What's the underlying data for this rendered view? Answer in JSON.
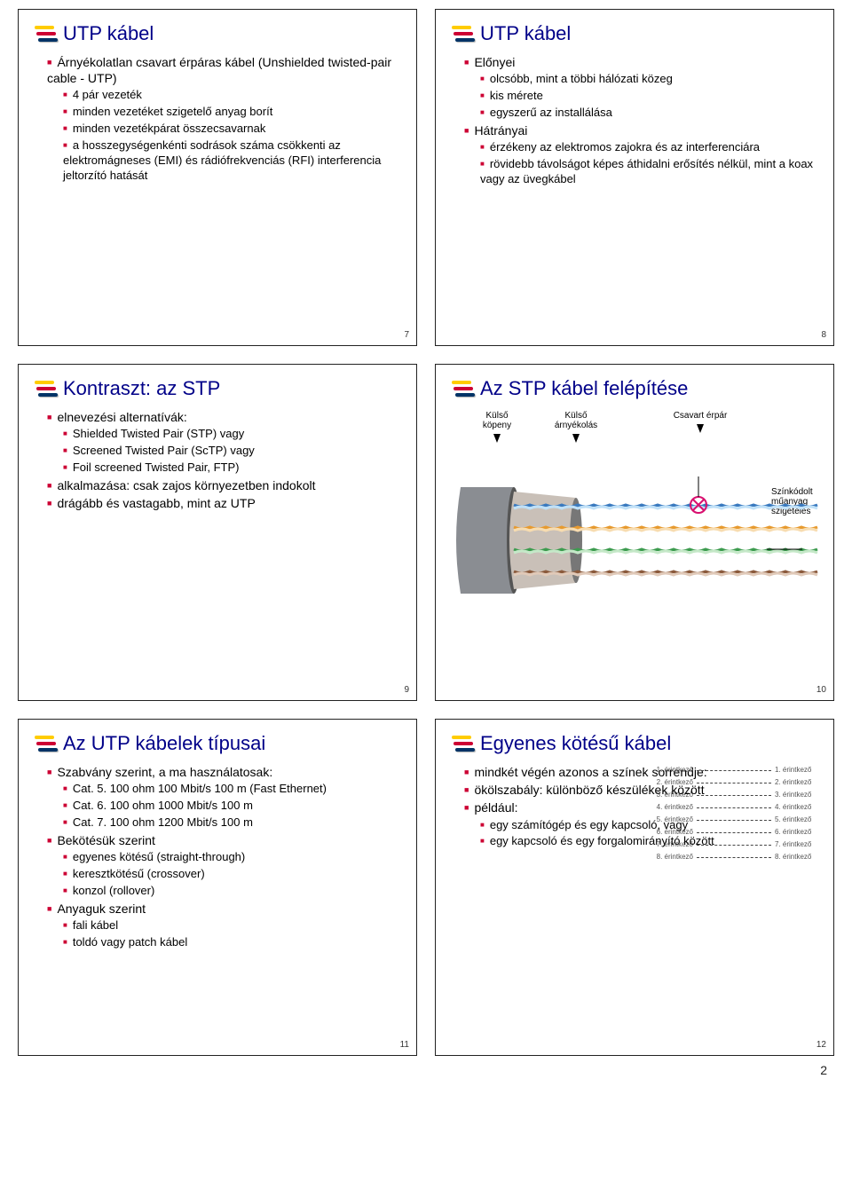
{
  "page_number": "2",
  "colors": {
    "title": "#000088",
    "bullet": "#cc0033",
    "icon_bar1": "#ffcc00",
    "icon_bar2": "#cc0033",
    "icon_bar3": "#003366",
    "border": "#222222",
    "text": "#000000",
    "bg": "#ffffff"
  },
  "stp_diagram": {
    "labels": {
      "outer_jacket": "Külső\nköpeny",
      "outer_shield": "Külső\nárnyékolás",
      "twisted_pair": "Csavart érpár",
      "color_insul": "Színkódolt\nműanyag\nszigetelés"
    },
    "pair_colors": [
      [
        "#3a7abf",
        "#bfe0f7"
      ],
      [
        "#e79a2f",
        "#f7dcb0"
      ],
      [
        "#3d9b4f",
        "#c5e8c8"
      ],
      [
        "#8b5a3c",
        "#e0c9b8"
      ]
    ],
    "marker_color": "#d80f6f",
    "jacket_color": "#8a8d92",
    "shield_color": "#c9c0b8"
  },
  "pinout": {
    "left": [
      "1. érintkező",
      "2. érintkező",
      "3. érintkező",
      "4. érintkező",
      "5. érintkező",
      "6. érintkező",
      "7. érintkező",
      "8. érintkező"
    ],
    "right": [
      "1. érintkező",
      "2. érintkező",
      "3. érintkező",
      "4. érintkező",
      "5. érintkező",
      "6. érintkező",
      "7. érintkező",
      "8. érintkező"
    ]
  },
  "slides": [
    {
      "num": "7",
      "title": "UTP kábel",
      "bullets": [
        {
          "t": "Árnyékolatlan csavart érpáras kábel (Unshielded twisted-pair cable - UTP)",
          "c": [
            {
              "t": "4 pár vezeték"
            },
            {
              "t": "minden vezetéket szigetelő anyag borít"
            },
            {
              "t": "minden vezetékpárat összecsavarnak"
            },
            {
              "t": "a hosszegységenkénti sodrások száma csökkenti az elektromágneses (EMI) és rádiófrekvenciás (RFI) interferencia jeltorzító hatását"
            }
          ]
        }
      ]
    },
    {
      "num": "8",
      "title": "UTP kábel",
      "bullets": [
        {
          "t": "Előnyei",
          "c": [
            {
              "t": "olcsóbb, mint a többi hálózati közeg"
            },
            {
              "t": "kis mérete"
            },
            {
              "t": "egyszerű az installálása"
            }
          ]
        },
        {
          "t": "Hátrányai",
          "c": [
            {
              "t": "érzékeny az elektromos zajokra és az interferenciára"
            },
            {
              "t": "rövidebb távolságot képes áthidalni erősítés nélkül, mint a koax vagy az üvegkábel"
            }
          ]
        }
      ]
    },
    {
      "num": "9",
      "title": "Kontraszt: az STP",
      "bullets": [
        {
          "t": "elnevezési alternatívák:",
          "c": [
            {
              "t": "Shielded Twisted Pair (STP) vagy"
            },
            {
              "t": "Screened Twisted Pair (ScTP) vagy"
            },
            {
              "t": "Foil screened Twisted Pair, FTP)"
            }
          ]
        },
        {
          "t": "alkalmazása: csak zajos környezetben indokolt"
        },
        {
          "t": "drágább és vastagabb, mint az UTP"
        }
      ]
    },
    {
      "num": "10",
      "title": "Az STP kábel felépítése",
      "figure": "stp"
    },
    {
      "num": "11",
      "title": "Az UTP kábelek típusai",
      "bullets": [
        {
          "t": "Szabvány szerint, a ma használatosak:",
          "c": [
            {
              "t": "Cat. 5. 100 ohm 100 Mbit/s 100 m (Fast Ethernet)"
            },
            {
              "t": "Cat. 6. 100 ohm 1000 Mbit/s 100 m"
            },
            {
              "t": "Cat. 7. 100 ohm 1200 Mbit/s 100 m"
            }
          ]
        },
        {
          "t": "Bekötésük szerint",
          "c": [
            {
              "t": "egyenes kötésű (straight-through)"
            },
            {
              "t": "keresztkötésű (crossover)"
            },
            {
              "t": "konzol (rollover)"
            }
          ]
        },
        {
          "t": "Anyaguk szerint",
          "c": [
            {
              "t": "fali kábel"
            },
            {
              "t": "toldó vagy patch kábel"
            }
          ]
        }
      ]
    },
    {
      "num": "12",
      "title": "Egyenes kötésű kábel",
      "bullets": [
        {
          "t": "mindkét végén azonos a színek sorrendje:",
          "pinout": true
        },
        {
          "t": "ökölszabály: különböző készülékek között"
        },
        {
          "t": "például:",
          "c": [
            {
              "t": "egy számítógép és egy kapcsoló, vagy"
            },
            {
              "t": "egy kapcsoló és egy forgalomirányító között"
            }
          ]
        }
      ]
    }
  ]
}
